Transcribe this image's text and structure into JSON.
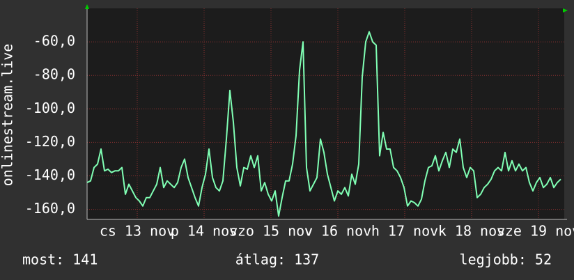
{
  "chart_data": {
    "type": "line",
    "y_label": "onlinestream.live",
    "x": [
      0,
      1.25,
      2.5,
      3.75,
      5,
      6.25,
      7.5,
      8.75,
      10,
      11.25,
      12.5,
      13.75,
      15,
      16.25,
      17.5,
      18.75,
      20,
      21.25,
      22.5,
      23.75,
      25,
      26.25,
      27.5,
      28.75,
      30,
      31.25,
      32.5,
      33.75,
      35,
      36.25,
      37.5,
      38.75,
      40,
      41.25,
      42.5,
      43.75,
      45,
      46.25,
      47.5,
      48.75,
      50,
      51.25,
      52.5,
      53.75,
      55,
      56.25,
      57.5,
      58.75,
      60,
      61.25,
      62.5,
      63.75,
      65,
      66.25,
      67.5,
      68.75,
      70,
      71.25,
      72.5,
      73.75,
      75,
      76.25,
      77.5,
      78.75,
      80,
      81.25,
      82.5,
      83.75,
      85,
      86.25,
      87.5,
      88.75,
      90,
      91.25,
      92.5,
      93.75,
      95,
      96.25,
      97.5,
      98.75,
      100,
      101.25,
      102.5,
      103.75,
      105,
      106.25,
      107.5,
      108.75,
      110,
      111.25,
      112.5,
      113.75,
      115,
      116.25,
      117.5,
      118.75,
      120,
      121.25,
      122.5,
      123.75,
      125,
      126.25,
      127.5,
      128.75,
      130,
      131.25,
      132.5,
      133.75,
      135,
      136.25,
      137.5,
      138.75,
      140,
      141.25,
      142.5,
      143.75,
      145,
      146.25,
      147.5,
      148.75,
      150,
      151.25,
      152.5,
      153.75,
      155,
      156.25,
      157.5,
      158.75,
      160,
      161.25,
      162.5,
      163.75,
      165,
      166.25,
      167.5,
      168.75,
      170
    ],
    "series": [
      {
        "color": "#80ffb4",
        "values": [
          -144,
          -143,
          -135,
          -133,
          -124,
          -137,
          -136,
          -138,
          -137,
          -137,
          -135,
          -151,
          -145,
          -149,
          -153,
          -155,
          -158,
          -153,
          -153,
          -149,
          -145,
          -135,
          -147,
          -143,
          -145,
          -147,
          -144,
          -135,
          -130,
          -141,
          -147,
          -153,
          -158,
          -147,
          -139,
          -124,
          -141,
          -147,
          -149,
          -143,
          -118,
          -89,
          -108,
          -135,
          -146,
          -135,
          -136,
          -128,
          -135,
          -128,
          -149,
          -144,
          -151,
          -155,
          -149,
          -164,
          -153,
          -143,
          -143,
          -133,
          -116,
          -77,
          -60,
          -135,
          -149,
          -145,
          -141,
          -118,
          -126,
          -139,
          -147,
          -155,
          -149,
          -151,
          -147,
          -152,
          -139,
          -145,
          -133,
          -81,
          -60,
          -54,
          -60,
          -62,
          -128,
          -114,
          -124,
          -124,
          -135,
          -137,
          -141,
          -147,
          -158,
          -155,
          -156,
          -158,
          -154,
          -143,
          -135,
          -134,
          -128,
          -137,
          -131,
          -126,
          -135,
          -124,
          -126,
          -118,
          -135,
          -141,
          -135,
          -137,
          -153,
          -151,
          -147,
          -145,
          -142,
          -137,
          -135,
          -137,
          -126,
          -137,
          -131,
          -137,
          -133,
          -137,
          -135,
          -144,
          -149,
          -144,
          -141,
          -147,
          -145,
          -141,
          -147,
          -144,
          -142
        ]
      }
    ],
    "xlim": [
      0,
      171.25
    ],
    "xticks": [
      {
        "value": 18,
        "label": "cs 13 nov"
      },
      {
        "value": 42,
        "label": "p 14 nov"
      },
      {
        "value": 66,
        "label": "szo 15 nov"
      },
      {
        "value": 90,
        "label": "v 16 nov"
      },
      {
        "value": 114,
        "label": "h 17 nov"
      },
      {
        "value": 138,
        "label": "k 18 nov"
      },
      {
        "value": 162,
        "label": "sze 19 nov"
      }
    ],
    "ylim": [
      -166,
      -40
    ],
    "yticks": [
      {
        "value": -60,
        "label": "-60,0"
      },
      {
        "value": -80,
        "label": "-80,0"
      },
      {
        "value": -100,
        "label": "-100,0"
      },
      {
        "value": -120,
        "label": "-120,0"
      },
      {
        "value": -140,
        "label": "-140,0"
      },
      {
        "value": -160,
        "label": "-160,0"
      }
    ],
    "grid": true,
    "footer": [
      "most: 141",
      "átlag: 137",
      "legjobb: 52"
    ]
  }
}
